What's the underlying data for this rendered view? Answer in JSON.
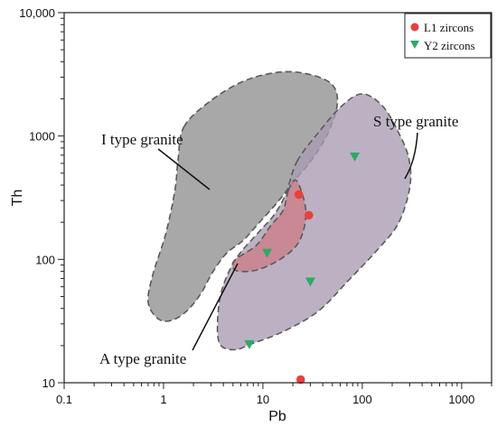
{
  "chart_data": {
    "type": "scatter",
    "xlabel": "Pb",
    "ylabel": "Th",
    "xscale": "log",
    "yscale": "log",
    "xlim": [
      0.1,
      2000
    ],
    "ylim": [
      10,
      10000
    ],
    "x_ticks": [
      {
        "value": 0.1,
        "label": "0.1"
      },
      {
        "value": 1,
        "label": "1"
      },
      {
        "value": 10,
        "label": "10"
      },
      {
        "value": 100,
        "label": "100"
      },
      {
        "value": 1000,
        "label": "1000"
      }
    ],
    "y_ticks": [
      {
        "value": 10,
        "label": "10"
      },
      {
        "value": 100,
        "label": "100"
      },
      {
        "value": 1000,
        "label": "1000"
      },
      {
        "value": 10000,
        "label": "10,000"
      }
    ],
    "legend_position": "top-right",
    "series": [
      {
        "name": "L1 zircons",
        "marker": "circle",
        "color": "#e8403c",
        "points": [
          {
            "x": 23,
            "y": 335
          },
          {
            "x": 29,
            "y": 228
          },
          {
            "x": 24,
            "y": 10.6
          }
        ]
      },
      {
        "name": "Y2 zircons",
        "marker": "triangle-down",
        "color": "#2daa6a",
        "points": [
          {
            "x": 84,
            "y": 680
          },
          {
            "x": 11,
            "y": 113
          },
          {
            "x": 30,
            "y": 66
          },
          {
            "x": 7.3,
            "y": 20.5
          }
        ]
      }
    ],
    "fields": [
      {
        "name": "I type granite",
        "fill": "#8f8f8f",
        "opacity": 0.78,
        "polygon": [
          [
            1.6,
            1180
          ],
          [
            2.9,
            1900
          ],
          [
            6.5,
            2800
          ],
          [
            15,
            3300
          ],
          [
            30,
            3150
          ],
          [
            50,
            2600
          ],
          [
            56,
            1800
          ],
          [
            45,
            1050
          ],
          [
            31,
            640
          ],
          [
            21,
            440
          ],
          [
            14,
            290
          ],
          [
            9,
            195
          ],
          [
            6.3,
            142
          ],
          [
            4.3,
            112
          ],
          [
            3.1,
            78
          ],
          [
            2.35,
            52
          ],
          [
            1.7,
            38
          ],
          [
            1.2,
            32
          ],
          [
            0.88,
            33
          ],
          [
            0.7,
            45
          ],
          [
            0.78,
            75
          ],
          [
            1.05,
            160
          ],
          [
            1.3,
            360
          ],
          [
            1.4,
            640
          ]
        ]
      },
      {
        "name": "S type granite",
        "fill": "#a99bb1",
        "opacity": 0.78,
        "polygon": [
          [
            22,
            620
          ],
          [
            36,
            1060
          ],
          [
            62,
            1750
          ],
          [
            100,
            2200
          ],
          [
            160,
            1750
          ],
          [
            230,
            1080
          ],
          [
            295,
            650
          ],
          [
            300,
            380
          ],
          [
            230,
            195
          ],
          [
            140,
            118
          ],
          [
            72,
            67
          ],
          [
            36,
            38
          ],
          [
            16,
            26
          ],
          [
            7.5,
            20.5
          ],
          [
            5.2,
            18.5
          ],
          [
            3.7,
            20.5
          ],
          [
            3.5,
            32
          ],
          [
            3.9,
            58
          ],
          [
            5.4,
            102
          ],
          [
            9,
            165
          ],
          [
            13,
            230
          ],
          [
            17,
            340
          ]
        ]
      },
      {
        "name": "A type granite",
        "fill": "#d06f78",
        "opacity": 0.62,
        "polygon": [
          [
            18,
            360
          ],
          [
            21,
            440
          ],
          [
            24,
            370
          ],
          [
            27,
            250
          ],
          [
            25.5,
            170
          ],
          [
            21,
            125
          ],
          [
            14,
            97
          ],
          [
            8.7,
            82
          ],
          [
            5.8,
            80
          ],
          [
            5,
            86
          ],
          [
            5.3,
            100
          ],
          [
            8.6,
            130
          ],
          [
            12,
            188
          ],
          [
            16,
            250
          ]
        ]
      }
    ],
    "annotations": [
      {
        "text": "I type granite",
        "target": "I type granite"
      },
      {
        "text": "S type granite",
        "target": "S type granite"
      },
      {
        "text": "A type granite",
        "target": "A type granite"
      }
    ]
  }
}
